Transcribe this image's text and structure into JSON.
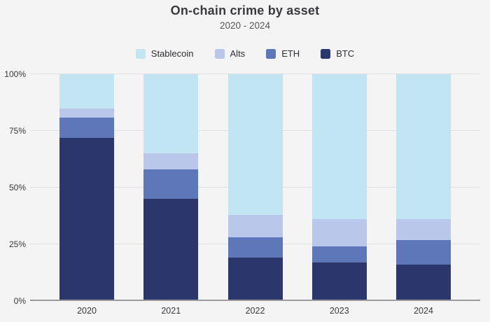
{
  "title": "On-chain crime by asset",
  "subtitle": "2020 - 2024",
  "colors": {
    "background": "#f4f4f5",
    "gridline": "#e1e1e3",
    "axis_line": "#9b9b9d",
    "title_text": "#3a3a3e",
    "subtitle_text": "#56565a",
    "tick_text": "#38383c"
  },
  "chart_data": {
    "type": "bar",
    "stacked": true,
    "stack_unit": "percent",
    "title": "On-chain crime by asset",
    "subtitle": "2020 - 2024",
    "categories": [
      "2020",
      "2021",
      "2022",
      "2023",
      "2024"
    ],
    "series": [
      {
        "name": "Stablecoin",
        "color": "#c2e5f3",
        "values": [
          15,
          35,
          62,
          64,
          64
        ]
      },
      {
        "name": "Alts",
        "color": "#b9c8ea",
        "values": [
          4,
          7,
          10,
          12,
          9
        ]
      },
      {
        "name": "ETH",
        "color": "#5d77b9",
        "values": [
          9,
          13,
          9,
          7,
          11
        ]
      },
      {
        "name": "BTC",
        "color": "#2a366c",
        "values": [
          72,
          45,
          19,
          17,
          16
        ]
      }
    ],
    "xlabel": "",
    "ylabel": "",
    "ylim": [
      0,
      100
    ],
    "yticks": [
      {
        "label": "0%",
        "value": 0
      },
      {
        "label": "25%",
        "value": 25
      },
      {
        "label": "50%",
        "value": 50
      },
      {
        "label": "75%",
        "value": 75
      },
      {
        "label": "100%",
        "value": 100
      }
    ],
    "grid": true,
    "legend_position": "top"
  }
}
